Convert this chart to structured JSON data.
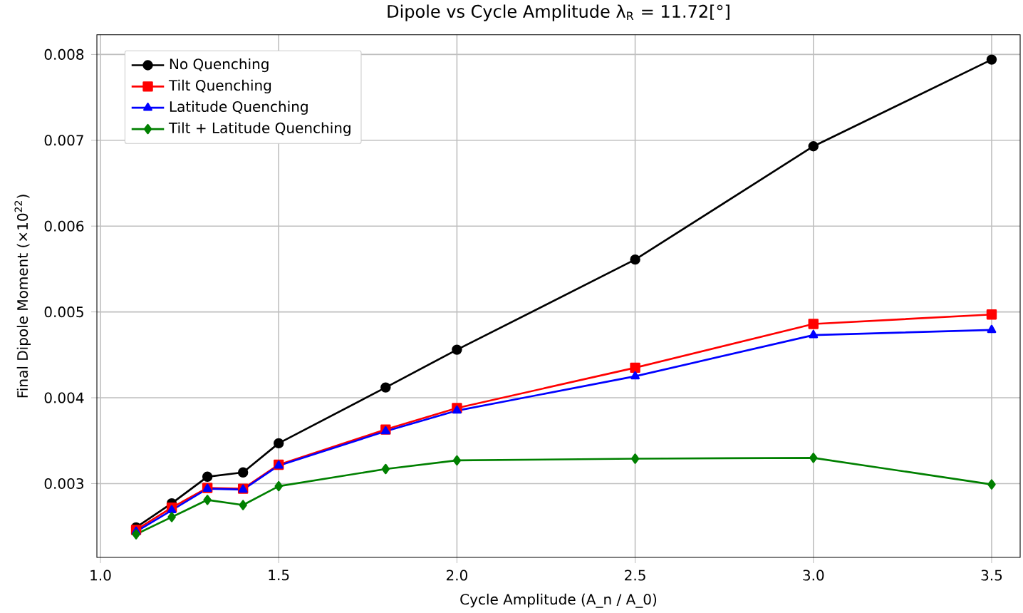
{
  "chart_data": {
    "type": "line",
    "title": "Dipole vs Cycle Amplitude λ$_{R}$ = 11.72[°]",
    "xlabel": "Cycle Amplitude (A_n / A_0)",
    "ylabel": "Final Dipole Moment (×10$^{22}$)",
    "x": [
      1.1,
      1.2,
      1.3,
      1.4,
      1.5,
      1.8,
      2.0,
      2.5,
      3.0,
      3.5
    ],
    "series": [
      {
        "name": "No Quenching",
        "color": "#000000",
        "marker": "circle",
        "values": [
          0.00249,
          0.00277,
          0.00308,
          0.00313,
          0.00347,
          0.00412,
          0.00456,
          0.00561,
          0.00693,
          0.00794
        ]
      },
      {
        "name": "Tilt Quenching",
        "color": "#ff0000",
        "marker": "square",
        "values": [
          0.00246,
          0.00272,
          0.00295,
          0.00294,
          0.00322,
          0.00363,
          0.00388,
          0.00435,
          0.00486,
          0.00497
        ]
      },
      {
        "name": "Latitude Quenching",
        "color": "#0000ff",
        "marker": "triangle",
        "values": [
          0.00244,
          0.00269,
          0.00294,
          0.00293,
          0.00321,
          0.00361,
          0.00385,
          0.00425,
          0.00473,
          0.00479
        ]
      },
      {
        "name": "Tilt + Latitude Quenching",
        "color": "#008000",
        "marker": "diamond",
        "values": [
          0.00241,
          0.00261,
          0.00281,
          0.00275,
          0.00297,
          0.00317,
          0.00327,
          0.00329,
          0.0033,
          0.00299
        ]
      }
    ],
    "xlim": [
      0.99,
      3.58
    ],
    "ylim": [
      0.00214,
      0.00823
    ],
    "xticks": [
      {
        "value": 1.0,
        "label": "1.0"
      },
      {
        "value": 1.5,
        "label": "1.5"
      },
      {
        "value": 2.0,
        "label": "2.0"
      },
      {
        "value": 2.5,
        "label": "2.5"
      },
      {
        "value": 3.0,
        "label": "3.0"
      },
      {
        "value": 3.5,
        "label": "3.5"
      }
    ],
    "yticks": [
      0.003,
      0.004,
      0.005,
      0.006,
      0.007,
      0.008
    ],
    "grid": true,
    "legend": "top left",
    "line_style": "solid"
  }
}
